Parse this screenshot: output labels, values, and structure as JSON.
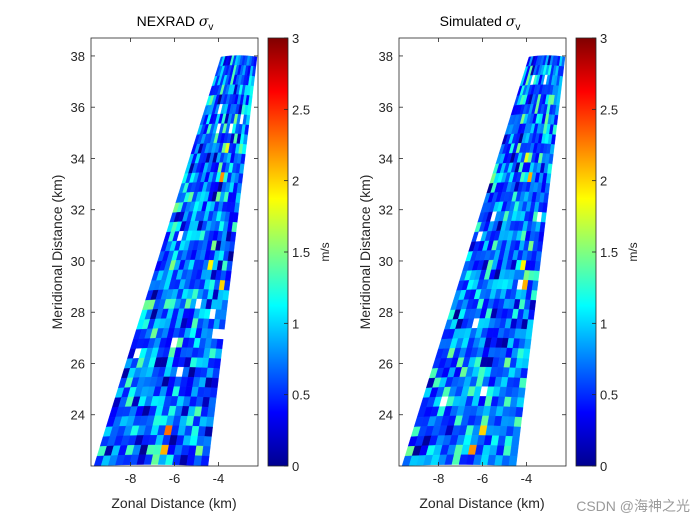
{
  "chart_data": [
    {
      "type": "heatmap",
      "title": "NEXRAD",
      "title_symbol": "σ",
      "title_subscript": "v",
      "xlabel": "Zonal Distance (km)",
      "ylabel": "Meridional Distance (km)",
      "xlim": [
        -9.8,
        -2.2
      ],
      "ylim": [
        22,
        38.7
      ],
      "xticks": [
        -8,
        -6,
        -4
      ],
      "yticks": [
        24,
        26,
        28,
        30,
        32,
        34,
        36,
        38
      ],
      "colorbar": {
        "label": "m/s",
        "range": [
          0,
          3
        ],
        "ticks": [
          0,
          0.5,
          1,
          1.5,
          2,
          2.5,
          3
        ],
        "colormap": "jet"
      },
      "grid": false,
      "domain": "sector",
      "rows": 42,
      "cols": 16,
      "seed": 7,
      "hot_cells": [
        {
          "row": 40,
          "col": 9,
          "value": 2.1
        },
        {
          "row": 38,
          "col": 9,
          "value": 2.3
        },
        {
          "row": 23,
          "col": 14,
          "value": 2.0
        },
        {
          "row": 21,
          "col": 11,
          "value": 1.9
        },
        {
          "row": 12,
          "col": 10,
          "value": 2.2
        },
        {
          "row": 9,
          "col": 10,
          "value": 1.8
        }
      ]
    },
    {
      "type": "heatmap",
      "title": "Simulated",
      "title_symbol": "σ",
      "title_subscript": "v",
      "xlabel": "Zonal Distance (km)",
      "ylabel": "Meridional Distance (km)",
      "xlim": [
        -9.8,
        -2.2
      ],
      "ylim": [
        22,
        38.7
      ],
      "xticks": [
        -8,
        -6,
        -4
      ],
      "yticks": [
        24,
        26,
        28,
        30,
        32,
        34,
        36,
        38
      ],
      "colorbar": {
        "label": "m/s",
        "range": [
          0,
          3
        ],
        "ticks": [
          0,
          0.5,
          1,
          1.5,
          2,
          2.5,
          3
        ],
        "colormap": "jet"
      },
      "grid": false,
      "domain": "sector",
      "rows": 42,
      "cols": 16,
      "seed": 19,
      "hot_cells": [
        {
          "row": 40,
          "col": 9,
          "value": 2.2
        },
        {
          "row": 38,
          "col": 10,
          "value": 2.0
        },
        {
          "row": 23,
          "col": 13,
          "value": 2.1
        },
        {
          "row": 21,
          "col": 12,
          "value": 1.9
        },
        {
          "row": 12,
          "col": 10,
          "value": 2.1
        },
        {
          "row": 10,
          "col": 8,
          "value": 1.8
        }
      ]
    }
  ],
  "watermark": "CSDN @海神之光"
}
